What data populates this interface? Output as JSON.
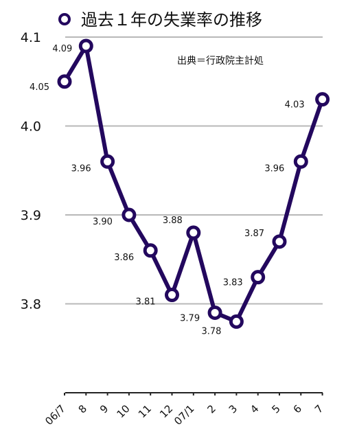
{
  "chart_data": {
    "type": "line",
    "title": "過去１年の失業率の推移",
    "source": "出典＝行政院主計処",
    "categories": [
      "06/7",
      "8",
      "9",
      "10",
      "11",
      "12",
      "07/1",
      "2",
      "3",
      "4",
      "5",
      "6",
      "7"
    ],
    "series": [
      {
        "values": [
          4.05,
          4.09,
          3.96,
          3.9,
          3.86,
          3.81,
          3.88,
          3.79,
          3.78,
          3.83,
          3.87,
          3.96,
          4.03
        ],
        "labels": [
          "4.05",
          "4.09",
          "3.96",
          "3.90",
          "3.86",
          "3.81",
          "3.88",
          "3.79",
          "3.78",
          "3.83",
          "3.87",
          "3.96",
          "4.03"
        ]
      }
    ],
    "yticks": [
      "3.8",
      "3.9",
      "4.0",
      "4.1"
    ],
    "ylim": [
      3.7,
      4.1
    ],
    "grid": true,
    "line_color": "#23085e"
  }
}
